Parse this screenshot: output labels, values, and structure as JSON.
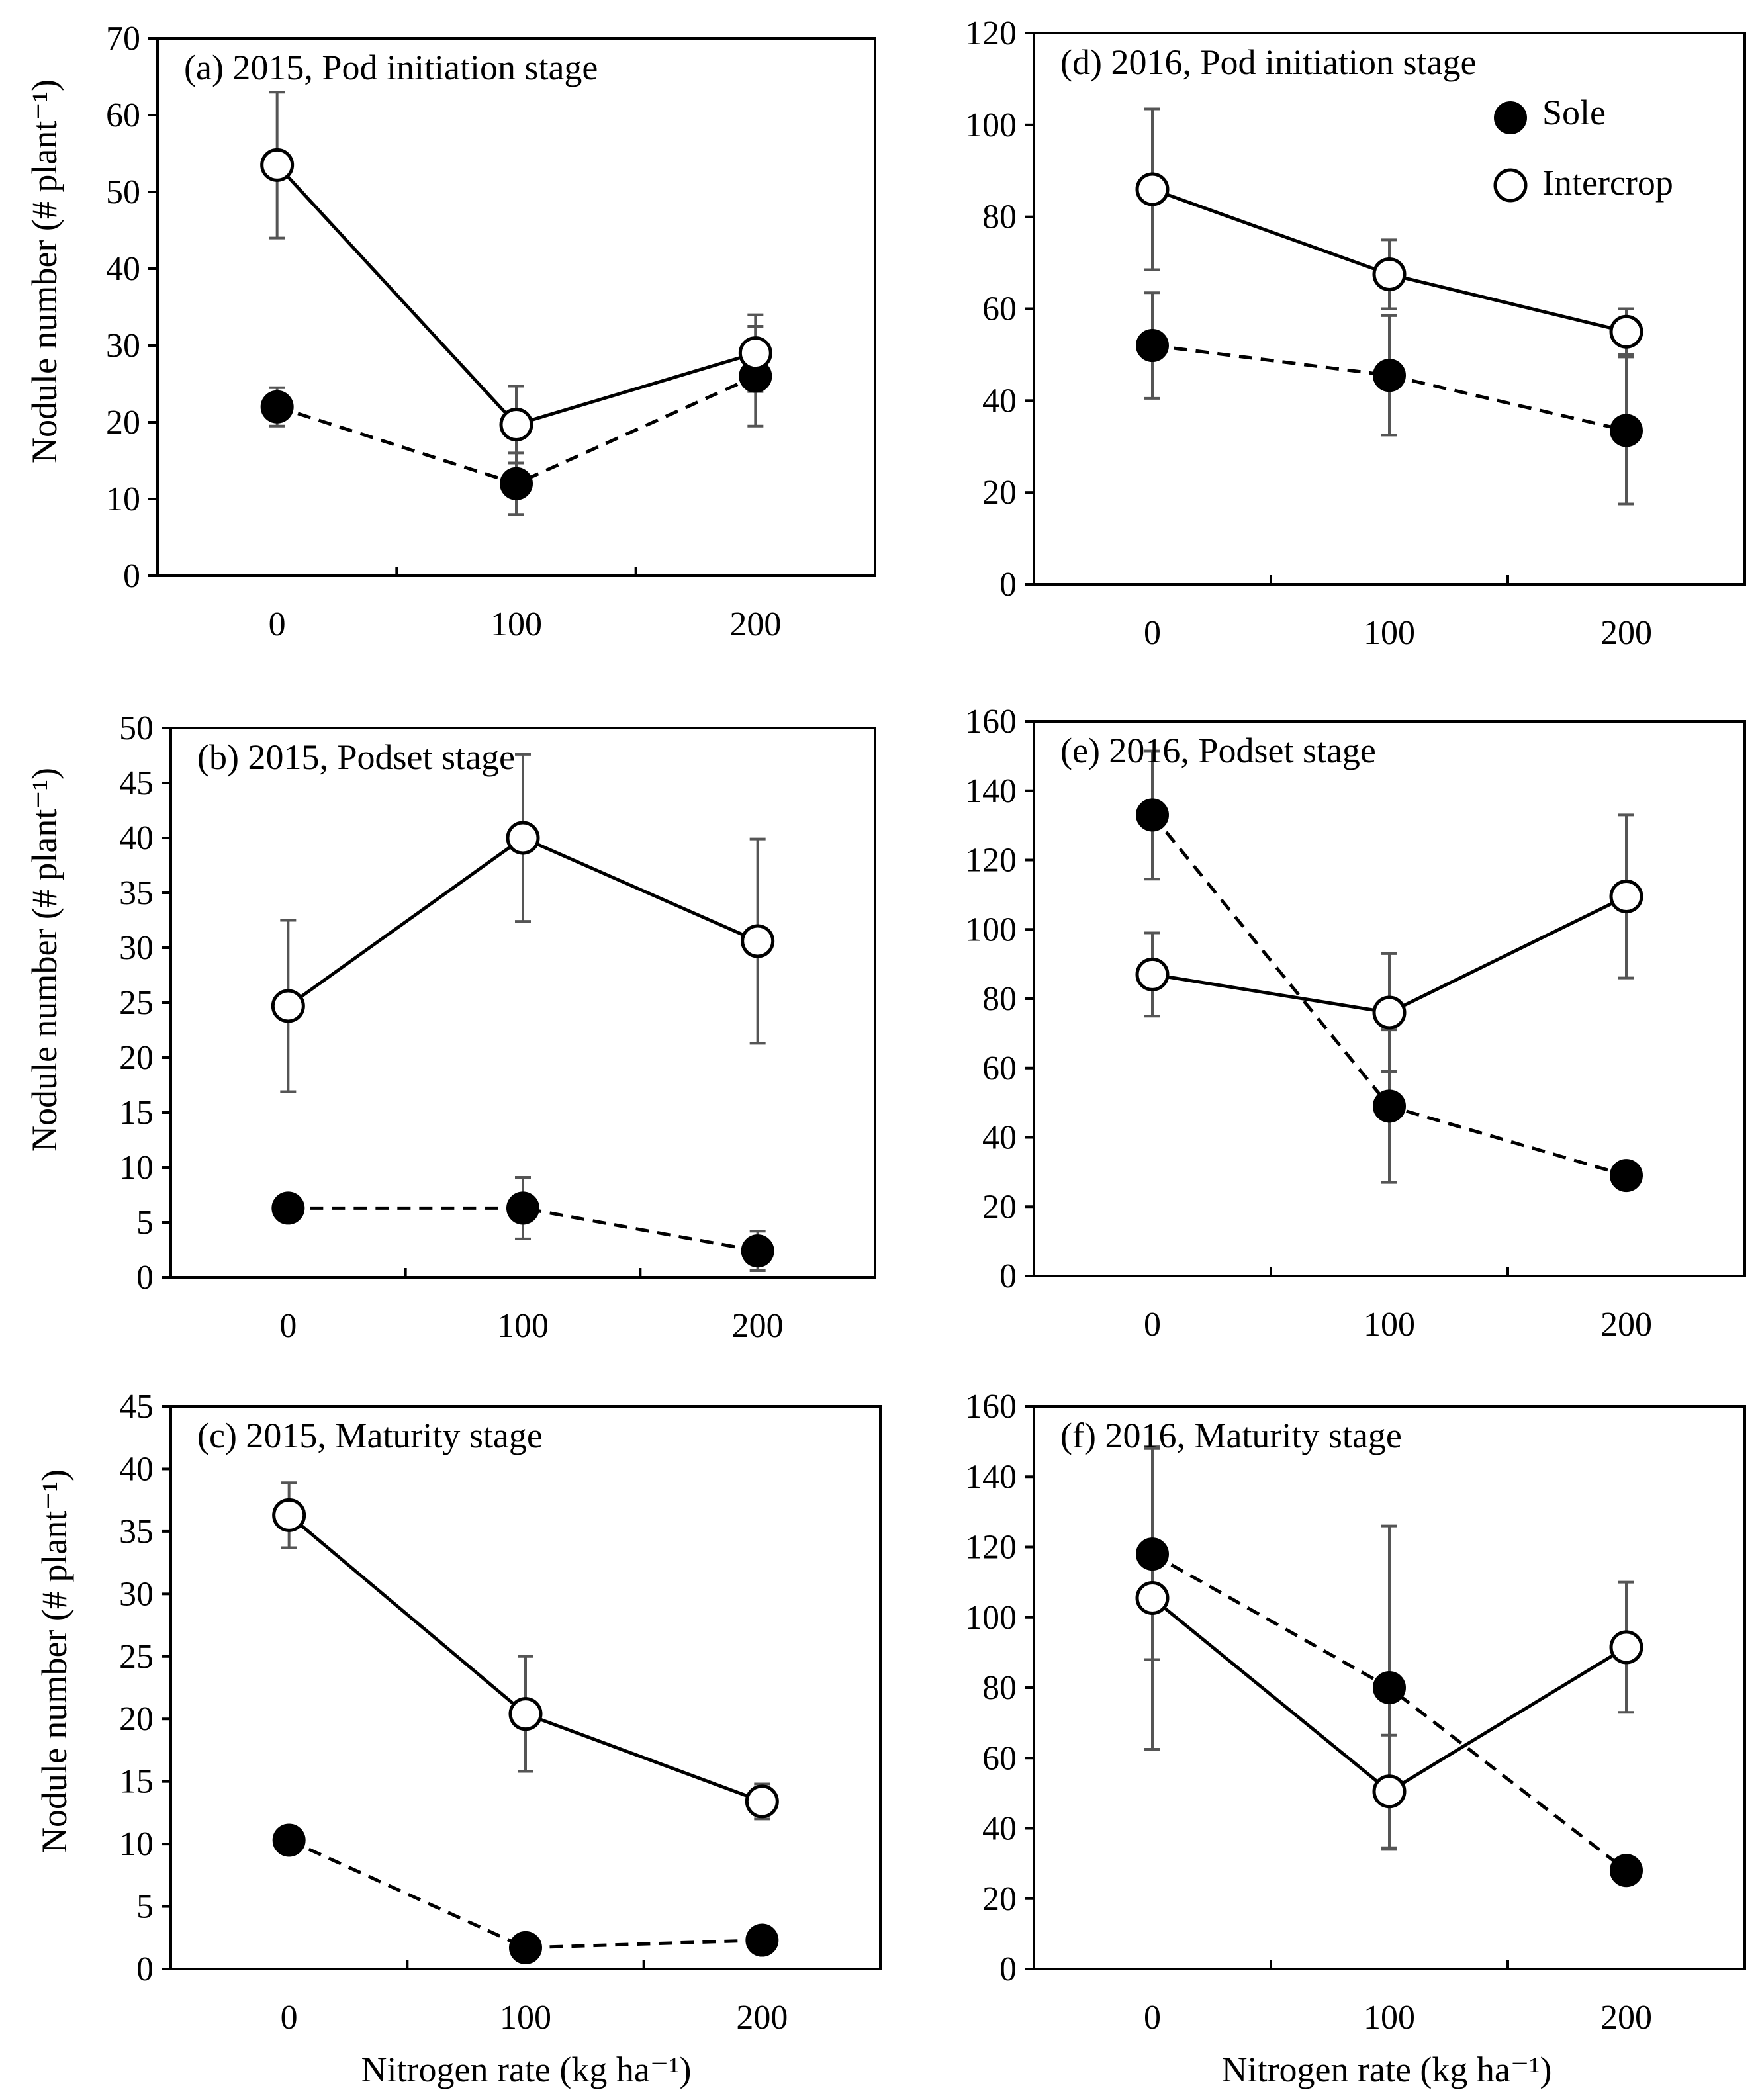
{
  "figure": {
    "ylabel": "Nodule number (# plant⁻¹)",
    "xlabel": "Nitrogen rate (kg ha⁻¹)"
  },
  "legend": {
    "sole_label": "Sole",
    "intercrop_label": "Intercrop"
  },
  "colors": {
    "line": "#000000",
    "sole_fill": "#000000",
    "intercrop_fill": "#ffffff",
    "error_bar": "#555555"
  },
  "chart_data": [
    {
      "id": "a",
      "type": "line",
      "title": "(a) 2015, Pod initiation stage",
      "xlabel": "",
      "ylabel": "Nodule number (# plant⁻¹)",
      "categories": [
        "0",
        "100",
        "200"
      ],
      "ylim": [
        0,
        70
      ],
      "yticks": [
        0,
        10,
        20,
        30,
        40,
        50,
        60,
        70
      ],
      "series": [
        {
          "name": "Sole",
          "values": [
            22,
            12,
            26
          ],
          "error": [
            2.5,
            4,
            6.5
          ]
        },
        {
          "name": "Intercrop",
          "values": [
            53.5,
            19.7,
            29
          ],
          "error": [
            9.5,
            5,
            5
          ]
        }
      ]
    },
    {
      "id": "d",
      "type": "line",
      "title": "(d) 2016, Pod initiation stage",
      "xlabel": "",
      "ylabel": "",
      "categories": [
        "0",
        "100",
        "200"
      ],
      "ylim": [
        0,
        120
      ],
      "yticks": [
        0,
        20,
        40,
        60,
        80,
        100,
        120
      ],
      "series": [
        {
          "name": "Sole",
          "values": [
            52,
            45.5,
            33.5
          ],
          "error": [
            11.5,
            13,
            16
          ]
        },
        {
          "name": "Intercrop",
          "values": [
            86,
            67.5,
            55
          ],
          "error": [
            17.5,
            7.5,
            5
          ]
        }
      ]
    },
    {
      "id": "b",
      "type": "line",
      "title": "(b) 2015, Podset stage",
      "xlabel": "",
      "ylabel": "Nodule number (# plant⁻¹)",
      "categories": [
        "0",
        "100",
        "200"
      ],
      "ylim": [
        0,
        50
      ],
      "yticks": [
        0,
        5,
        10,
        15,
        20,
        25,
        30,
        35,
        40,
        45,
        50
      ],
      "series": [
        {
          "name": "Sole",
          "values": [
            6.3,
            6.3,
            2.4
          ],
          "error": [
            0.2,
            2.8,
            1.8
          ]
        },
        {
          "name": "Intercrop",
          "values": [
            24.7,
            40,
            30.6
          ],
          "error": [
            7.8,
            7.6,
            9.3
          ]
        }
      ]
    },
    {
      "id": "e",
      "type": "line",
      "title": "(e) 2016, Podset stage",
      "xlabel": "",
      "ylabel": "",
      "categories": [
        "0",
        "100",
        "200"
      ],
      "ylim": [
        0,
        160
      ],
      "yticks": [
        0,
        20,
        40,
        60,
        80,
        100,
        120,
        140,
        160
      ],
      "series": [
        {
          "name": "Sole",
          "values": [
            133,
            49,
            29
          ],
          "error": [
            18.5,
            22,
            1
          ]
        },
        {
          "name": "Intercrop",
          "values": [
            87,
            76,
            109.5
          ],
          "error": [
            12,
            17,
            23.5
          ]
        }
      ]
    },
    {
      "id": "c",
      "type": "line",
      "title": "(c) 2015, Maturity stage",
      "xlabel": "Nitrogen rate (kg ha⁻¹)",
      "ylabel": "Nodule number (# plant⁻¹)",
      "categories": [
        "0",
        "100",
        "200"
      ],
      "ylim": [
        0,
        45
      ],
      "yticks": [
        0,
        5,
        10,
        15,
        20,
        25,
        30,
        35,
        40,
        45
      ],
      "series": [
        {
          "name": "Sole",
          "values": [
            10.3,
            1.7,
            2.3
          ],
          "error": [
            0.2,
            0.2,
            0.2
          ]
        },
        {
          "name": "Intercrop",
          "values": [
            36.3,
            20.4,
            13.4
          ],
          "error": [
            2.6,
            4.6,
            1.4
          ]
        }
      ]
    },
    {
      "id": "f",
      "type": "line",
      "title": "(f) 2016, Maturity stage",
      "xlabel": "Nitrogen rate (kg ha⁻¹)",
      "ylabel": "",
      "categories": [
        "0",
        "100",
        "200"
      ],
      "ylim": [
        0,
        160
      ],
      "yticks": [
        0,
        20,
        40,
        60,
        80,
        100,
        120,
        140,
        160
      ],
      "series": [
        {
          "name": "Sole",
          "values": [
            118,
            80,
            28
          ],
          "error": [
            30,
            46,
            1
          ]
        },
        {
          "name": "Intercrop",
          "values": [
            105.5,
            50.5,
            91.5
          ],
          "error": [
            43,
            16,
            18.5
          ]
        }
      ]
    }
  ]
}
